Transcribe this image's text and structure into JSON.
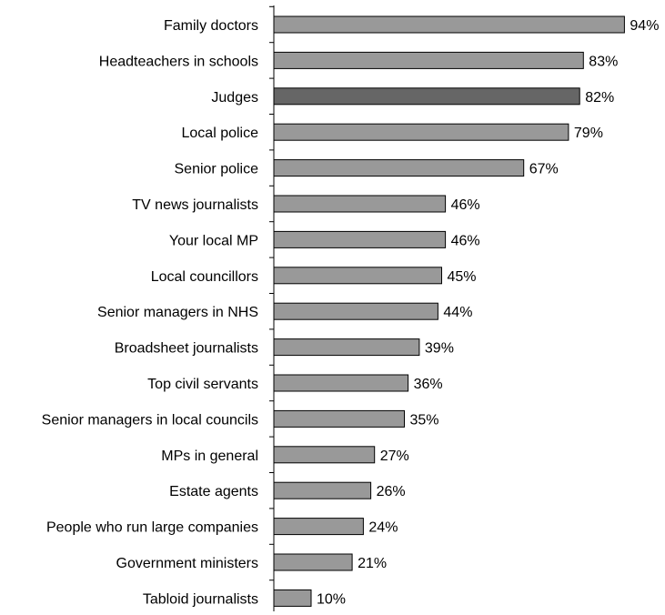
{
  "chart_data": {
    "type": "bar",
    "orientation": "horizontal",
    "title": "",
    "xlabel": "",
    "ylabel": "",
    "categories": [
      "Family doctors",
      "Headteachers in schools",
      "Judges",
      "Local police",
      "Senior police",
      "TV news journalists",
      "Your local MP",
      "Local councillors",
      "Senior managers in NHS",
      "Broadsheet journalists",
      "Top civil servants",
      "Senior managers in local councils",
      "MPs in general",
      "Estate agents",
      "People who run large companies",
      "Government ministers",
      "Tabloid journalists"
    ],
    "values": [
      94,
      83,
      82,
      79,
      67,
      46,
      46,
      45,
      44,
      39,
      36,
      35,
      27,
      26,
      24,
      21,
      10
    ],
    "value_labels": [
      "94%",
      "83%",
      "82%",
      "79%",
      "67%",
      "46%",
      "46%",
      "45%",
      "44%",
      "39%",
      "36%",
      "35%",
      "27%",
      "26%",
      "24%",
      "21%",
      "10%"
    ],
    "xlim": [
      0,
      100
    ],
    "grid": false,
    "legend": "none",
    "highlighted_category": "Judges",
    "colors": {
      "bar": "#999999",
      "highlight": "#666666",
      "outline": "#000000"
    }
  }
}
